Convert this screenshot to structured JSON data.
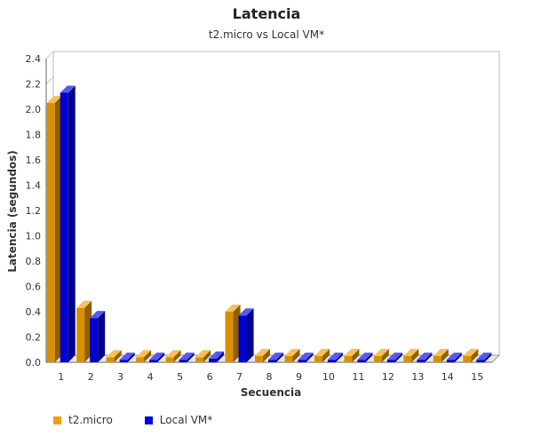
{
  "chart_data": {
    "type": "bar",
    "title": "Latencia",
    "subtitle": "t2.micro vs Local VM*",
    "xlabel": "Secuencia",
    "ylabel": "Latencia (segundos)",
    "ylim": [
      0,
      2.4
    ],
    "yticks": [
      "0.0",
      "0.2",
      "0.4",
      "0.6",
      "0.8",
      "1.0",
      "1.2",
      "1.4",
      "1.6",
      "1.8",
      "2.0",
      "2.2",
      "2.4"
    ],
    "categories": [
      "1",
      "2",
      "3",
      "4",
      "5",
      "6",
      "7",
      "8",
      "9",
      "10",
      "11",
      "12",
      "13",
      "14",
      "15"
    ],
    "series": [
      {
        "name": "t2.micro",
        "color": "#f0a000",
        "values": [
          2.05,
          0.43,
          0.04,
          0.04,
          0.04,
          0.04,
          0.4,
          0.05,
          0.05,
          0.05,
          0.05,
          0.05,
          0.05,
          0.05,
          0.05
        ]
      },
      {
        "name": "Local VM*",
        "color": "#0000e8",
        "values": [
          2.13,
          0.35,
          0.02,
          0.02,
          0.02,
          0.03,
          0.37,
          0.02,
          0.02,
          0.02,
          0.02,
          0.02,
          0.02,
          0.02,
          0.02
        ]
      }
    ],
    "grid": true,
    "legend_position": "bottom-left"
  }
}
